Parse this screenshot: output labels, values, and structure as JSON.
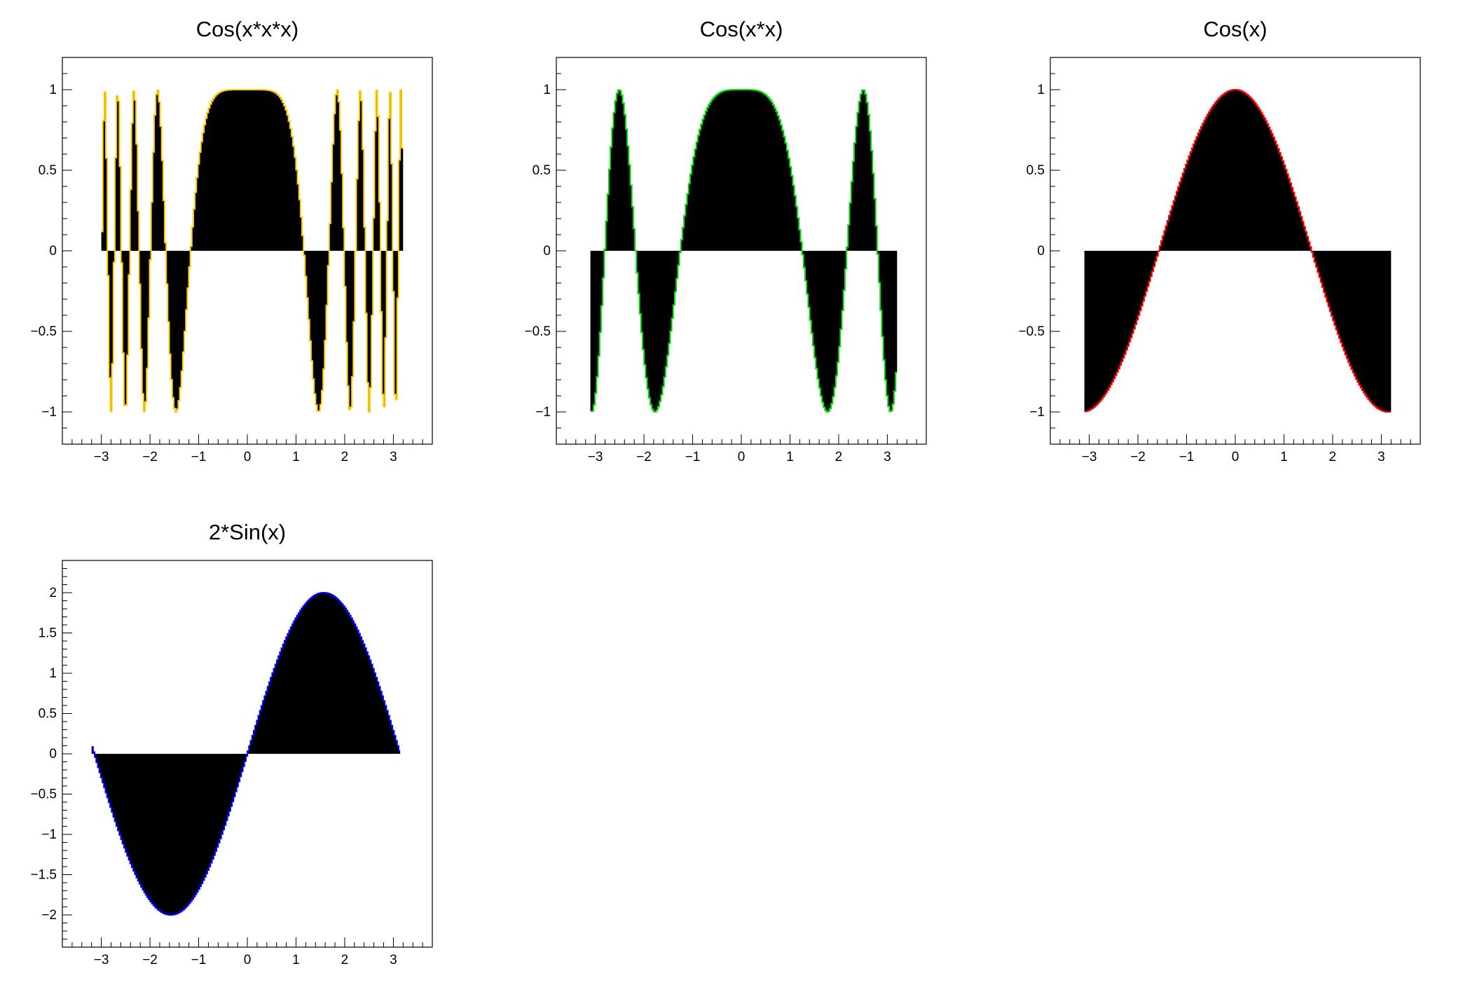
{
  "chart_data": [
    {
      "type": "area",
      "title": "Cos(x*x*x)",
      "function": "cos(x*x*x)",
      "x_range": [
        -3.0,
        3.2
      ],
      "samples": 200,
      "fill_baseline": 0,
      "xlim": [
        -3.8,
        3.8
      ],
      "ylim": [
        -1.2,
        1.2
      ],
      "xticks": [
        -3,
        -2,
        -1,
        0,
        1,
        2,
        3
      ],
      "yticks": [
        -1,
        -0.5,
        0,
        0.5,
        1
      ],
      "xtick_labels": [
        "−3",
        "−2",
        "−1",
        "0",
        "1",
        "2",
        "3"
      ],
      "ytick_labels": [
        "−1",
        "−0.5",
        "0",
        "0.5",
        "1"
      ],
      "line_color": "#ffcc00",
      "fill_color": "#000000",
      "grid": false
    },
    {
      "type": "area",
      "title": "Cos(x*x)",
      "function": "cos(x*x)",
      "x_range": [
        -3.1,
        3.2
      ],
      "samples": 200,
      "fill_baseline": 0,
      "xlim": [
        -3.8,
        3.8
      ],
      "ylim": [
        -1.2,
        1.2
      ],
      "xticks": [
        -3,
        -2,
        -1,
        0,
        1,
        2,
        3
      ],
      "yticks": [
        -1,
        -0.5,
        0,
        0.5,
        1
      ],
      "xtick_labels": [
        "−3",
        "−2",
        "−1",
        "0",
        "1",
        "2",
        "3"
      ],
      "ytick_labels": [
        "−1",
        "−0.5",
        "0",
        "0.5",
        "1"
      ],
      "line_color": "#00dd00",
      "fill_color": "#000000",
      "grid": false
    },
    {
      "type": "area",
      "title": "Cos(x)",
      "function": "cos(x)",
      "x_range": [
        -3.1,
        3.2
      ],
      "samples": 200,
      "fill_baseline": 0,
      "xlim": [
        -3.8,
        3.8
      ],
      "ylim": [
        -1.2,
        1.2
      ],
      "xticks": [
        -3,
        -2,
        -1,
        0,
        1,
        2,
        3
      ],
      "yticks": [
        -1,
        -0.5,
        0,
        0.5,
        1
      ],
      "xtick_labels": [
        "−3",
        "−2",
        "−1",
        "0",
        "1",
        "2",
        "3"
      ],
      "ytick_labels": [
        "−1",
        "−0.5",
        "0",
        "0.5",
        "1"
      ],
      "line_color": "#ff0000",
      "fill_color": "#000000",
      "grid": false
    },
    {
      "type": "area",
      "title": "2*Sin(x)",
      "function": "2*sin(x)",
      "x_range": [
        -3.2,
        3.14
      ],
      "samples": 200,
      "fill_baseline": 0,
      "xlim": [
        -3.8,
        3.8
      ],
      "ylim": [
        -2.4,
        2.4
      ],
      "xticks": [
        -3,
        -2,
        -1,
        0,
        1,
        2,
        3
      ],
      "yticks": [
        -2,
        -1.5,
        -1,
        -0.5,
        0,
        0.5,
        1,
        1.5,
        2
      ],
      "xtick_labels": [
        "−3",
        "−2",
        "−1",
        "0",
        "1",
        "2",
        "3"
      ],
      "ytick_labels": [
        "−2",
        "−1.5",
        "−1",
        "−0.5",
        "0",
        "0.5",
        "1",
        "1.5",
        "2"
      ],
      "line_color": "#0000ff",
      "fill_color": "#000000",
      "grid": false
    }
  ]
}
